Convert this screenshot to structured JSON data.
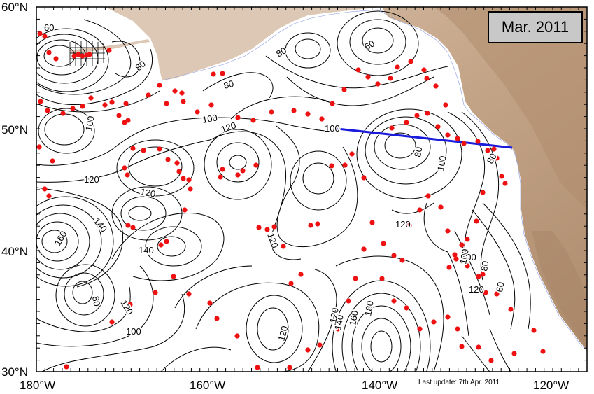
{
  "title": "Mar. 2011",
  "footer": "Last update: 7th Apr. 2011",
  "axes": {
    "lat_labels": [
      "60°N",
      "50°N",
      "40°N",
      "30°N"
    ],
    "lon_labels": [
      "180°W",
      "160°W",
      "140°W",
      "120°W"
    ]
  },
  "contour_labels": [
    "60",
    "80",
    "60",
    "80",
    "80",
    "100",
    "100",
    "120",
    "100",
    "80",
    "100",
    "80",
    "120",
    "120",
    "140",
    "160",
    "140",
    "120",
    "80",
    "120",
    "100",
    "120",
    "100",
    "120",
    "140",
    "160",
    "180",
    "120",
    "100",
    "80",
    "60",
    "120"
  ],
  "colors": {
    "land_high": "#b8977a",
    "land_low": "#dcc8b4",
    "land_mid": "#cdb39a",
    "contour": "#000000",
    "float_marker": "#ee1111",
    "section_line": "#1a1adc",
    "title_box": "#c8c8c8"
  }
}
